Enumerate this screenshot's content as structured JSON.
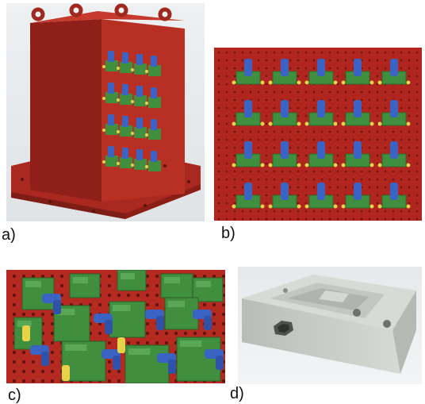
{
  "figure": {
    "panels": [
      {
        "id": "a",
        "caption": "a)",
        "icon": "fixture-tower-illustration"
      },
      {
        "id": "b",
        "caption": "b)",
        "icon": "fixture-plate-front-illustration"
      },
      {
        "id": "c",
        "caption": "c)",
        "icon": "clamps-closeup-illustration"
      },
      {
        "id": "d",
        "caption": "d)",
        "icon": "machined-workpiece-illustration"
      }
    ]
  },
  "colors": {
    "fixture_red": "#b52a20",
    "clamp_blue": "#3a63c4",
    "block_green": "#3f8f3f",
    "pin_yellow": "#e7d24a",
    "workpiece_gray": "#cfd2cd"
  }
}
